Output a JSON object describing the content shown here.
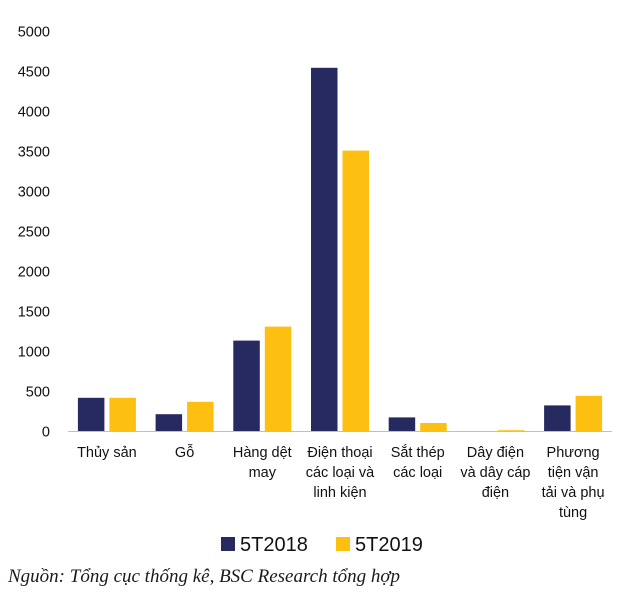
{
  "chart_data": {
    "type": "bar",
    "categories": [
      [
        "Thủy sản"
      ],
      [
        "Gỗ"
      ],
      [
        "Hàng dệt",
        "may"
      ],
      [
        "Điện thoại",
        "các loại và",
        "linh kiện"
      ],
      [
        "Sắt thép",
        "các loại"
      ],
      [
        "Dây điện",
        "và dây cáp",
        "điện"
      ],
      [
        "Phương",
        "tiện vận",
        "tải và phụ",
        "tùng"
      ]
    ],
    "series": [
      {
        "name": "5T2018",
        "color": "#262a5e",
        "values": [
          415,
          210,
          1130,
          4540,
          170,
          0,
          320
        ]
      },
      {
        "name": "5T2019",
        "color": "#fdc010",
        "values": [
          415,
          365,
          1305,
          3505,
          100,
          10,
          440
        ]
      }
    ],
    "ylim": [
      0,
      5000
    ],
    "yticks": [
      "0",
      "500",
      "1000",
      "1500",
      "2000",
      "2500",
      "3000",
      "3500",
      "4000",
      "4500",
      "5000"
    ],
    "grid": false,
    "legend_position": "bottom"
  },
  "source_note": "Nguồn: Tổng cục thống kê, BSC Research tổng hợp"
}
